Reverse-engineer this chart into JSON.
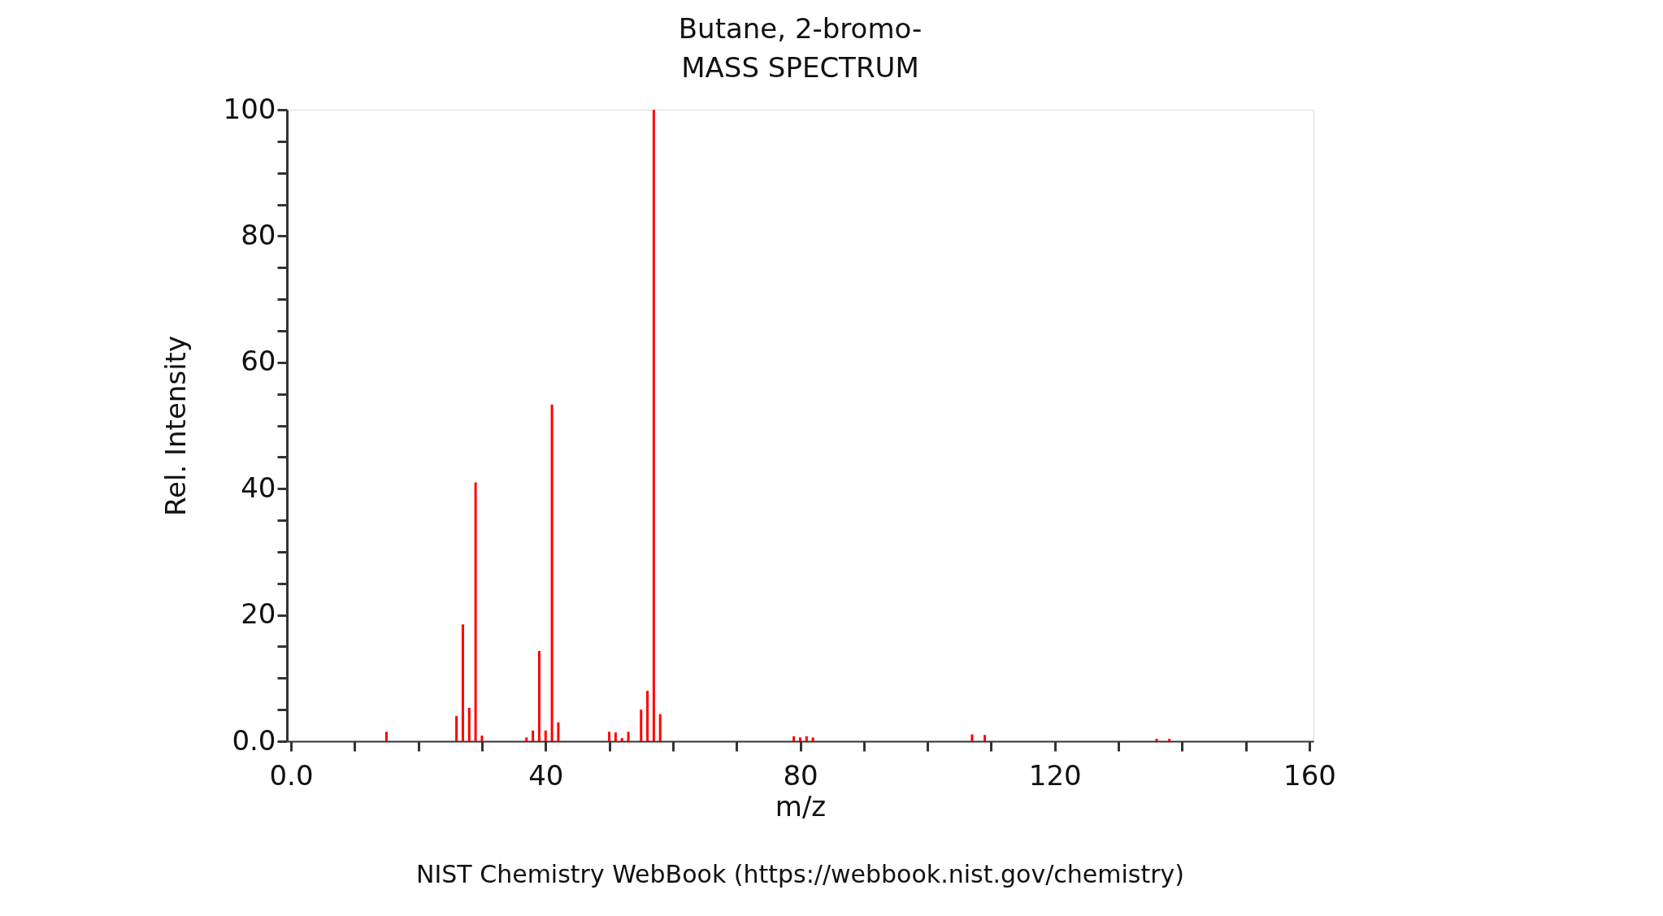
{
  "chart_data": {
    "type": "bar",
    "title": "Butane, 2-bromo-",
    "subtitle": "MASS SPECTRUM",
    "xlabel": "m/z",
    "ylabel": "Rel. Intensity",
    "x": [
      15,
      26,
      27,
      28,
      29,
      30,
      37,
      38,
      39,
      40,
      41,
      42,
      50,
      51,
      52,
      53,
      55,
      56,
      57,
      58,
      79,
      80,
      81,
      82,
      107,
      109,
      136,
      138
    ],
    "series": [
      {
        "color": "#ff0000",
        "values": [
          1.5,
          4.0,
          18.5,
          5.3,
          41.0,
          0.9,
          0.6,
          1.7,
          14.3,
          1.7,
          53.3,
          3.0,
          1.5,
          1.4,
          0.5,
          1.5,
          5.0,
          8.0,
          100,
          4.3,
          0.8,
          0.6,
          0.8,
          0.6,
          1.1,
          1.0,
          0.4,
          0.4
        ]
      }
    ],
    "xlim": [
      0,
      160
    ],
    "ylim": [
      0,
      100
    ],
    "xticks": [
      {
        "value": 0,
        "label": "0.0"
      },
      {
        "value": 10,
        "label": null
      },
      {
        "value": 20,
        "label": null
      },
      {
        "value": 30,
        "label": null
      },
      40,
      {
        "value": 50,
        "label": null
      },
      {
        "value": 60,
        "label": null
      },
      {
        "value": 70,
        "label": null
      },
      80,
      {
        "value": 90,
        "label": null
      },
      {
        "value": 100,
        "label": null
      },
      {
        "value": 110,
        "label": null
      },
      120,
      {
        "value": 130,
        "label": null
      },
      {
        "value": 140,
        "label": null
      },
      {
        "value": 150,
        "label": null
      },
      160
    ],
    "yticks": [
      {
        "value": 0,
        "label": "0.0"
      },
      {
        "value": 5,
        "label": null
      },
      {
        "value": 10,
        "label": null
      },
      {
        "value": 15,
        "label": null
      },
      20,
      {
        "value": 25,
        "label": null
      },
      {
        "value": 30,
        "label": null
      },
      {
        "value": 35,
        "label": null
      },
      40,
      {
        "value": 45,
        "label": null
      },
      {
        "value": 50,
        "label": null
      },
      {
        "value": 55,
        "label": null
      },
      60,
      {
        "value": 65,
        "label": null
      },
      {
        "value": 70,
        "label": null
      },
      {
        "value": 75,
        "label": null
      },
      80,
      {
        "value": 85,
        "label": null
      },
      {
        "value": 90,
        "label": null
      },
      {
        "value": 95,
        "label": null
      },
      100
    ],
    "grid": false,
    "annotations": [
      "NIST Chemistry WebBook (https://webbook.nist.gov/chemistry)"
    ]
  }
}
